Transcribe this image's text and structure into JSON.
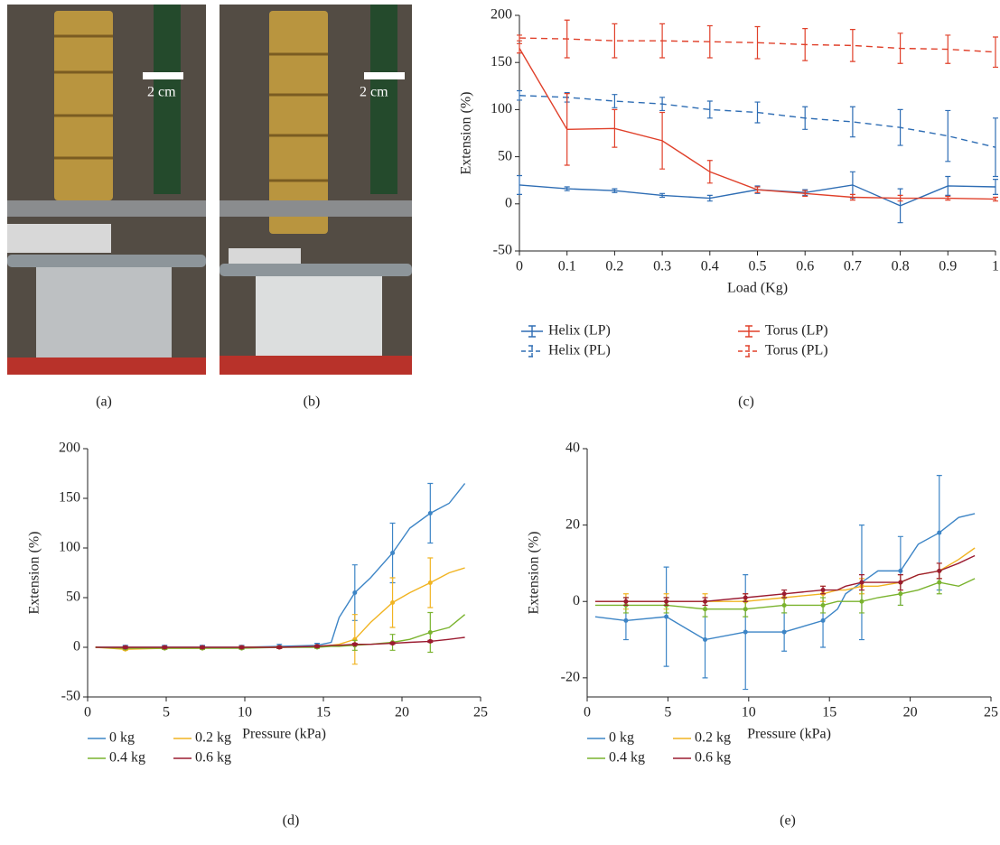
{
  "photos": [
    {
      "scale_label": "2 cm",
      "label": "(a)"
    },
    {
      "scale_label": "2 cm",
      "label": "(b)"
    }
  ],
  "chart_data": [
    {
      "type": "line",
      "label": "(c)",
      "x_label": "Load (Kg)",
      "y_label": "Extension (%)",
      "x": [
        0,
        0.1,
        0.2,
        0.3,
        0.4,
        0.5,
        0.6,
        0.7,
        0.8,
        0.9,
        1
      ],
      "xlim": [
        0,
        1
      ],
      "ylim": [
        -50,
        200
      ],
      "xticks": [
        0,
        0.1,
        0.2,
        0.3,
        0.4,
        0.5,
        0.6,
        0.7,
        0.8,
        0.9,
        1
      ],
      "yticks": [
        -50,
        0,
        50,
        100,
        150,
        200
      ],
      "series": [
        {
          "name": "Helix (LP)",
          "color": "#2e6db4",
          "dash": false,
          "values": [
            20,
            16,
            14,
            9,
            6,
            15,
            12,
            20,
            -2,
            19,
            18
          ],
          "errors": [
            10,
            2,
            2,
            2,
            3,
            4,
            3,
            14,
            18,
            10,
            8
          ]
        },
        {
          "name": "Helix (PL)",
          "color": "#2e6db4",
          "dash": true,
          "values": [
            115,
            113,
            109,
            106,
            100,
            97,
            91,
            87,
            81,
            72,
            60
          ],
          "errors": [
            5,
            5,
            7,
            7,
            9,
            11,
            12,
            16,
            19,
            27,
            31
          ]
        },
        {
          "name": "Torus (LP)",
          "color": "#e0402a",
          "dash": false,
          "values": [
            165,
            79,
            80,
            67,
            34,
            15,
            11,
            7,
            6,
            6,
            5
          ],
          "errors": [
            5,
            38,
            20,
            30,
            12,
            3,
            3,
            3,
            3,
            2,
            2
          ]
        },
        {
          "name": "Torus (PL)",
          "color": "#e0402a",
          "dash": true,
          "values": [
            176,
            175,
            173,
            173,
            172,
            171,
            169,
            168,
            165,
            164,
            161
          ],
          "errors": [
            3,
            20,
            18,
            18,
            17,
            17,
            17,
            17,
            16,
            15,
            16
          ]
        }
      ]
    },
    {
      "type": "line",
      "label": "(d)",
      "x_label": "Pressure (kPa)",
      "y_label": "Extension (%)",
      "x": [
        0.5,
        2.4,
        4.9,
        7.3,
        9.8,
        12.2,
        14.6,
        15.5,
        16,
        17,
        18,
        19.4,
        20.5,
        21.8,
        23,
        24
      ],
      "xlim": [
        0,
        25
      ],
      "ylim": [
        -50,
        200
      ],
      "xticks": [
        0,
        5,
        10,
        15,
        20,
        25
      ],
      "yticks": [
        -50,
        0,
        50,
        100,
        150,
        200
      ],
      "series": [
        {
          "name": "0 kg",
          "color": "#3d85c6",
          "values": [
            0,
            0,
            0,
            0,
            0,
            1,
            2,
            5,
            30,
            55,
            70,
            95,
            120,
            135,
            145,
            165
          ],
          "errors": [
            null,
            2,
            2,
            2,
            2,
            2,
            2,
            null,
            null,
            28,
            null,
            30,
            null,
            30,
            null,
            null
          ]
        },
        {
          "name": "0.2 kg",
          "color": "#f1b422",
          "values": [
            0,
            -2,
            -1,
            -1,
            0,
            0,
            1,
            2,
            3,
            8,
            25,
            45,
            55,
            65,
            75,
            80
          ],
          "errors": [
            null,
            1,
            1,
            1,
            1,
            1,
            1,
            null,
            null,
            25,
            null,
            25,
            null,
            25,
            null,
            null
          ]
        },
        {
          "name": "0.4 kg",
          "color": "#7ab32e",
          "values": [
            0,
            -1,
            -1,
            -1,
            -1,
            0,
            0,
            1,
            1,
            2,
            3,
            5,
            8,
            15,
            20,
            33
          ],
          "errors": [
            null,
            1,
            1,
            1,
            1,
            1,
            1,
            null,
            null,
            5,
            null,
            8,
            null,
            20,
            null,
            null
          ]
        },
        {
          "name": "0.6 kg",
          "color": "#9b1b30",
          "values": [
            0,
            0,
            0,
            0,
            0,
            0,
            1,
            2,
            2,
            3,
            3,
            4,
            5,
            6,
            8,
            10
          ],
          "errors": [
            null,
            1,
            1,
            1,
            1,
            1,
            1,
            null,
            null,
            1,
            null,
            1,
            null,
            1,
            null,
            null
          ]
        }
      ]
    },
    {
      "type": "line",
      "label": "(e)",
      "x_label": "Pressure (kPa)",
      "y_label": "Extension (%)",
      "x": [
        0.5,
        2.4,
        4.9,
        7.3,
        9.8,
        12.2,
        14.6,
        15.5,
        16,
        17,
        18,
        19.4,
        20.5,
        21.8,
        23,
        24
      ],
      "xlim": [
        0,
        25
      ],
      "ylim": [
        -25,
        40
      ],
      "xticks": [
        0,
        5,
        10,
        15,
        20,
        25
      ],
      "yticks": [
        -20,
        0,
        20,
        40
      ],
      "series": [
        {
          "name": "0 kg",
          "color": "#3d85c6",
          "values": [
            -4,
            -5,
            -4,
            -10,
            -8,
            -8,
            -5,
            -2,
            2,
            5,
            8,
            8,
            15,
            18,
            22,
            23
          ],
          "errors": [
            null,
            5,
            13,
            10,
            15,
            5,
            7,
            null,
            null,
            15,
            null,
            9,
            null,
            15,
            null,
            null
          ]
        },
        {
          "name": "0.2 kg",
          "color": "#f1b422",
          "values": [
            0,
            0,
            0,
            0,
            0,
            1,
            2,
            3,
            3,
            4,
            4,
            5,
            7,
            8,
            11,
            14
          ],
          "errors": [
            null,
            2,
            2,
            2,
            2,
            2,
            2,
            null,
            null,
            2,
            null,
            2,
            null,
            2,
            null,
            null
          ]
        },
        {
          "name": "0.4 kg",
          "color": "#7ab32e",
          "values": [
            -1,
            -1,
            -1,
            -2,
            -2,
            -1,
            -1,
            0,
            0,
            0,
            1,
            2,
            3,
            5,
            4,
            6
          ],
          "errors": [
            null,
            2,
            2,
            2,
            2,
            2,
            2,
            null,
            null,
            3,
            null,
            3,
            null,
            3,
            null,
            null
          ]
        },
        {
          "name": "0.6 kg",
          "color": "#9b1b30",
          "values": [
            0,
            0,
            0,
            0,
            1,
            2,
            3,
            3,
            4,
            5,
            5,
            5,
            7,
            8,
            10,
            12
          ],
          "errors": [
            null,
            1,
            1,
            1,
            1,
            1,
            1,
            null,
            null,
            2,
            null,
            2,
            null,
            2,
            null,
            null
          ]
        }
      ]
    }
  ]
}
